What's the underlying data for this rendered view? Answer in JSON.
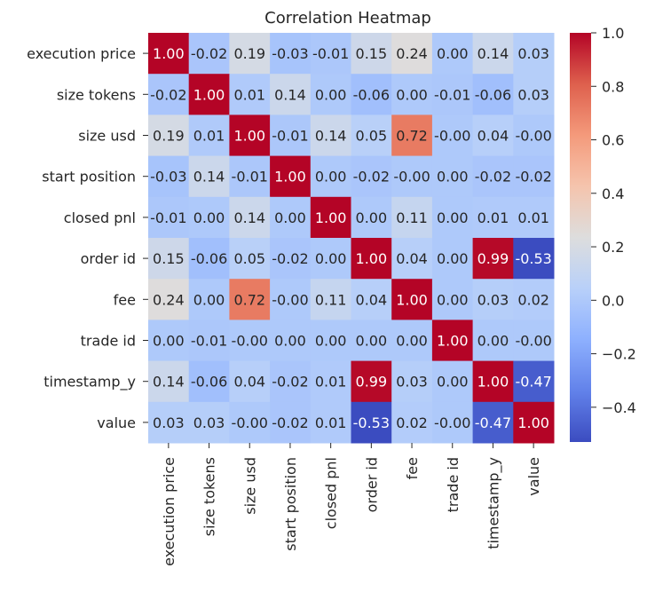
{
  "chart_data": {
    "type": "heatmap",
    "title": "Correlation Heatmap",
    "xlabel": "",
    "ylabel": "",
    "colormap": "coolwarm",
    "labels": [
      "execution price",
      "size tokens",
      "size usd",
      "start position",
      "closed pnl",
      "order id",
      "fee",
      "trade id",
      "timestamp_y",
      "value"
    ],
    "matrix": [
      [
        1.0,
        -0.02,
        0.19,
        -0.03,
        -0.01,
        0.15,
        0.24,
        0.0,
        0.14,
        0.03
      ],
      [
        -0.02,
        1.0,
        0.01,
        0.14,
        0.0,
        -0.06,
        0.0,
        -0.01,
        -0.06,
        0.03
      ],
      [
        0.19,
        0.01,
        1.0,
        -0.01,
        0.14,
        0.05,
        0.72,
        -0.0,
        0.04,
        -0.0
      ],
      [
        -0.03,
        0.14,
        -0.01,
        1.0,
        0.0,
        -0.02,
        -0.0,
        0.0,
        -0.02,
        -0.02
      ],
      [
        -0.01,
        0.0,
        0.14,
        0.0,
        1.0,
        0.0,
        0.11,
        0.0,
        0.01,
        0.01
      ],
      [
        0.15,
        -0.06,
        0.05,
        -0.02,
        0.0,
        1.0,
        0.04,
        0.0,
        0.99,
        -0.53
      ],
      [
        0.24,
        0.0,
        0.72,
        -0.0,
        0.11,
        0.04,
        1.0,
        0.0,
        0.03,
        0.02
      ],
      [
        0.0,
        -0.01,
        -0.0,
        0.0,
        0.0,
        0.0,
        0.0,
        1.0,
        0.0,
        -0.0
      ],
      [
        0.14,
        -0.06,
        0.04,
        -0.02,
        0.01,
        0.99,
        0.03,
        0.0,
        1.0,
        -0.47
      ],
      [
        0.03,
        0.03,
        -0.0,
        -0.02,
        0.01,
        -0.53,
        0.02,
        -0.0,
        -0.47,
        1.0
      ]
    ],
    "value_format": "0.00",
    "colorbar": {
      "vmin": -0.53,
      "vmax": 1.0,
      "ticks": [
        1.0,
        0.8,
        0.6,
        0.4,
        0.2,
        0.0,
        -0.2,
        -0.4
      ],
      "tick_labels": [
        "1.0",
        "0.8",
        "0.6",
        "0.4",
        "0.2",
        "0.0",
        "−0.2",
        "−0.4"
      ]
    },
    "grid": false,
    "legend": "colorbar-right"
  }
}
